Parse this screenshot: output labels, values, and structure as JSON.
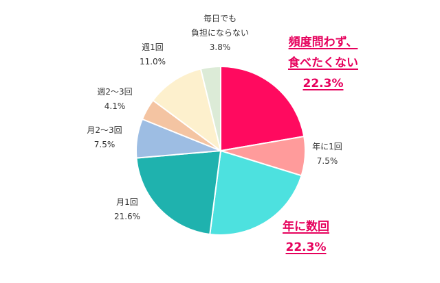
{
  "chart_data": {
    "type": "pie",
    "slices": [
      {
        "label_lines": [
          "頻度問わず、",
          "食べたくない"
        ],
        "value_text": "22.3%",
        "value": 22.3,
        "color": "#ff0a5f"
      },
      {
        "label_lines": [
          "年に1回"
        ],
        "value_text": "7.5%",
        "value": 7.5,
        "color": "#ff9b9b"
      },
      {
        "label_lines": [
          "年に数回"
        ],
        "value_text": "22.3%",
        "value": 22.3,
        "color": "#4de1df"
      },
      {
        "label_lines": [
          "月1回"
        ],
        "value_text": "21.6%",
        "value": 21.6,
        "color": "#1fb2ae"
      },
      {
        "label_lines": [
          "月2〜3回"
        ],
        "value_text": "7.5%",
        "value": 7.5,
        "color": "#9dbde3"
      },
      {
        "label_lines": [
          "週2〜3回"
        ],
        "value_text": "4.1%",
        "value": 4.1,
        "color": "#f4c4a2"
      },
      {
        "label_lines": [
          "週1回"
        ],
        "value_text": "11.0%",
        "value": 11.0,
        "color": "#fdf0cd"
      },
      {
        "label_lines": [
          "毎日でも",
          "負担にならない"
        ],
        "value_text": "3.8%",
        "value": 3.8,
        "color": "#dcebd7"
      }
    ],
    "start_angle_deg": 0,
    "direction": "clockwise"
  },
  "colors": {
    "highlight_text": "#e6005c",
    "label_text": "#333333",
    "slice_border": "#ffffff"
  }
}
